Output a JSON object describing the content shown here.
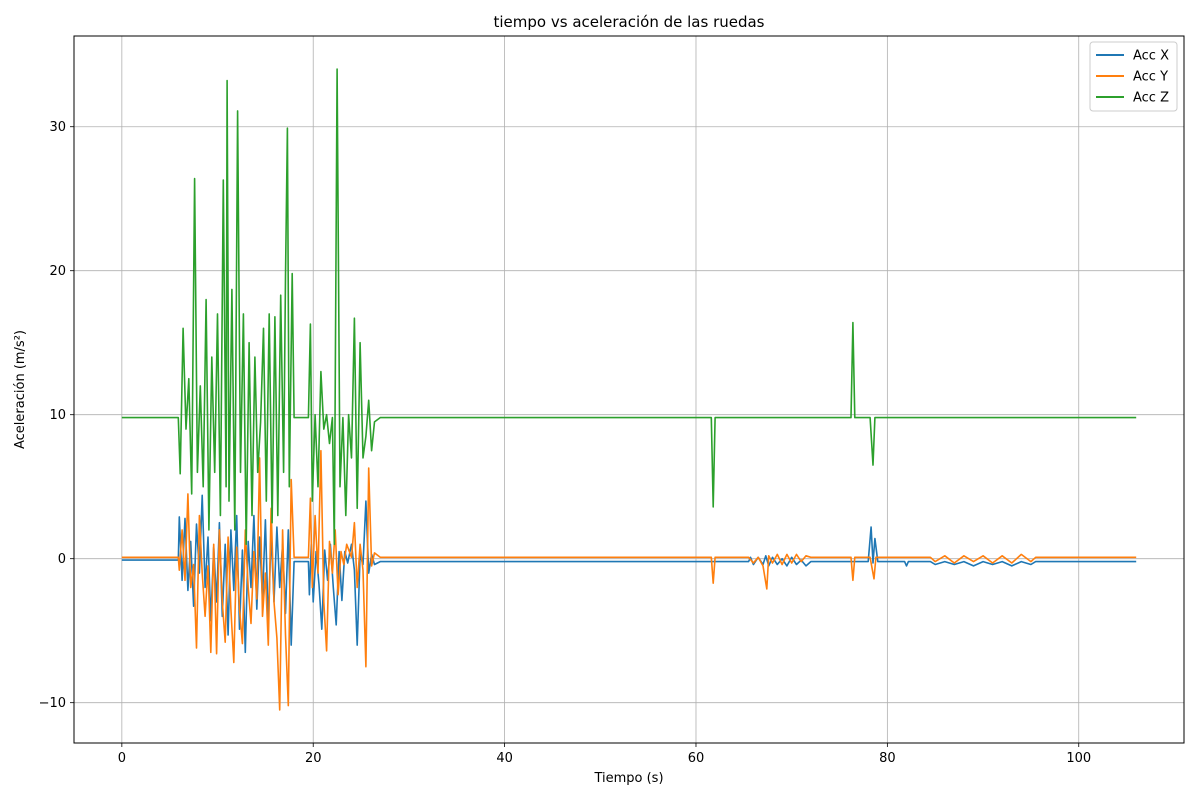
{
  "chart_data": {
    "type": "line",
    "title": "tiempo vs aceleración de las ruedas",
    "xlabel": "Tiempo (s)",
    "ylabel": "Aceleración (m/s²)",
    "xlim": [
      -5,
      111
    ],
    "ylim": [
      -12.8,
      36.3
    ],
    "x_ticks": [
      0,
      20,
      40,
      60,
      80,
      100
    ],
    "y_ticks": [
      -10,
      0,
      10,
      20,
      30
    ],
    "y_tick_labels": [
      "−10",
      "0",
      "10",
      "20",
      "30"
    ],
    "grid": true,
    "legend_position": "top-right",
    "series": [
      {
        "name": "Acc X",
        "color": "#1f77b4",
        "points": [
          [
            0,
            -0.1
          ],
          [
            5.9,
            -0.1
          ],
          [
            6.0,
            2.9
          ],
          [
            6.3,
            -1.5
          ],
          [
            6.6,
            2.8
          ],
          [
            6.9,
            -2.2
          ],
          [
            7.2,
            1.2
          ],
          [
            7.5,
            -3.3
          ],
          [
            7.8,
            2.4
          ],
          [
            8.1,
            -1.0
          ],
          [
            8.4,
            4.4
          ],
          [
            8.7,
            -2.0
          ],
          [
            9.0,
            1.5
          ],
          [
            9.3,
            -4.3
          ],
          [
            9.6,
            0.8
          ],
          [
            9.9,
            -3.0
          ],
          [
            10.2,
            2.5
          ],
          [
            10.5,
            -4.0
          ],
          [
            10.8,
            1.0
          ],
          [
            11.1,
            -5.3
          ],
          [
            11.4,
            2.0
          ],
          [
            11.7,
            -2.2
          ],
          [
            12.0,
            3.0
          ],
          [
            12.3,
            -4.9
          ],
          [
            12.6,
            0.6
          ],
          [
            12.9,
            -6.5
          ],
          [
            13.2,
            1.2
          ],
          [
            13.5,
            -2.0
          ],
          [
            13.8,
            3.0
          ],
          [
            14.1,
            -3.5
          ],
          [
            14.4,
            1.5
          ],
          [
            14.7,
            -2.8
          ],
          [
            15.0,
            2.7
          ],
          [
            15.3,
            -4.6
          ],
          [
            15.6,
            1.8
          ],
          [
            15.9,
            -3.0
          ],
          [
            16.2,
            2.2
          ],
          [
            16.5,
            -2.0
          ],
          [
            16.8,
            1.0
          ],
          [
            17.1,
            -3.8
          ],
          [
            17.4,
            2.0
          ],
          [
            17.7,
            -6.0
          ],
          [
            18.0,
            -0.2
          ],
          [
            19.5,
            -0.2
          ],
          [
            19.6,
            -2.5
          ],
          [
            19.8,
            1.0
          ],
          [
            20.0,
            -3.0
          ],
          [
            20.3,
            0.5
          ],
          [
            20.6,
            -1.8
          ],
          [
            20.9,
            -4.9
          ],
          [
            21.2,
            0.6
          ],
          [
            21.5,
            -1.5
          ],
          [
            21.8,
            1.0
          ],
          [
            22.1,
            -2.0
          ],
          [
            22.4,
            -4.6
          ],
          [
            22.7,
            0.5
          ],
          [
            23.0,
            -2.9
          ],
          [
            23.3,
            0.5
          ],
          [
            23.6,
            -0.3
          ],
          [
            24.0,
            1.0
          ],
          [
            24.3,
            -0.8
          ],
          [
            24.6,
            -6.0
          ],
          [
            24.9,
            0.3
          ],
          [
            25.2,
            -0.4
          ],
          [
            25.5,
            4.0
          ],
          [
            25.8,
            -1.0
          ],
          [
            26.1,
            0.3
          ],
          [
            26.4,
            -0.4
          ],
          [
            27.0,
            -0.2
          ],
          [
            65.5,
            -0.2
          ],
          [
            65.7,
            0.1
          ],
          [
            66.0,
            -0.4
          ],
          [
            66.5,
            0.1
          ],
          [
            67.0,
            -0.4
          ],
          [
            67.3,
            0.2
          ],
          [
            67.6,
            -0.5
          ],
          [
            68.0,
            0.1
          ],
          [
            68.5,
            -0.4
          ],
          [
            69.0,
            0.0
          ],
          [
            69.5,
            -0.5
          ],
          [
            70.0,
            0.1
          ],
          [
            70.5,
            -0.4
          ],
          [
            71.0,
            -0.1
          ],
          [
            71.5,
            -0.5
          ],
          [
            72.0,
            -0.2
          ],
          [
            78.0,
            -0.2
          ],
          [
            78.3,
            2.2
          ],
          [
            78.5,
            -0.3
          ],
          [
            78.7,
            1.4
          ],
          [
            79.0,
            -0.2
          ],
          [
            81.8,
            -0.2
          ],
          [
            82.0,
            -0.5
          ],
          [
            82.2,
            -0.2
          ],
          [
            84.5,
            -0.2
          ],
          [
            85.0,
            -0.4
          ],
          [
            86.0,
            -0.2
          ],
          [
            87.0,
            -0.4
          ],
          [
            88.0,
            -0.2
          ],
          [
            89.0,
            -0.5
          ],
          [
            90.0,
            -0.2
          ],
          [
            91.0,
            -0.4
          ],
          [
            92.0,
            -0.2
          ],
          [
            93.0,
            -0.5
          ],
          [
            94.0,
            -0.2
          ],
          [
            95.0,
            -0.4
          ],
          [
            95.5,
            -0.2
          ],
          [
            106,
            -0.2
          ]
        ]
      },
      {
        "name": "Acc Y",
        "color": "#ff7f0e",
        "points": [
          [
            0,
            0.1
          ],
          [
            5.9,
            0.1
          ],
          [
            6.0,
            -0.8
          ],
          [
            6.3,
            2.0
          ],
          [
            6.6,
            -1.5
          ],
          [
            6.9,
            4.5
          ],
          [
            7.2,
            -2.0
          ],
          [
            7.5,
            -0.4
          ],
          [
            7.8,
            -6.2
          ],
          [
            8.1,
            3.0
          ],
          [
            8.4,
            -1.0
          ],
          [
            8.7,
            -4.0
          ],
          [
            9.0,
            -0.5
          ],
          [
            9.3,
            -6.5
          ],
          [
            9.6,
            1.0
          ],
          [
            9.9,
            -6.6
          ],
          [
            10.2,
            2.0
          ],
          [
            10.5,
            -3.0
          ],
          [
            10.8,
            -5.8
          ],
          [
            11.1,
            1.5
          ],
          [
            11.4,
            -3.5
          ],
          [
            11.7,
            -7.2
          ],
          [
            12.0,
            0.8
          ],
          [
            12.3,
            -3.5
          ],
          [
            12.6,
            -5.9
          ],
          [
            12.9,
            2.0
          ],
          [
            13.2,
            -2.0
          ],
          [
            13.5,
            -4.5
          ],
          [
            13.8,
            0.5
          ],
          [
            14.1,
            -2.8
          ],
          [
            14.4,
            7.0
          ],
          [
            14.7,
            -4.0
          ],
          [
            15.0,
            -1.0
          ],
          [
            15.3,
            -6.0
          ],
          [
            15.6,
            3.5
          ],
          [
            15.9,
            -3.0
          ],
          [
            16.2,
            -5.5
          ],
          [
            16.5,
            -10.5
          ],
          [
            16.8,
            2.0
          ],
          [
            17.1,
            -5.3
          ],
          [
            17.4,
            -10.2
          ],
          [
            17.7,
            5.5
          ],
          [
            18.0,
            0.1
          ],
          [
            19.5,
            0.1
          ],
          [
            19.7,
            4.2
          ],
          [
            19.9,
            -2.0
          ],
          [
            20.2,
            3.0
          ],
          [
            20.5,
            -1.0
          ],
          [
            20.8,
            7.5
          ],
          [
            21.1,
            -3.0
          ],
          [
            21.4,
            -6.4
          ],
          [
            21.7,
            1.2
          ],
          [
            22.0,
            -1.0
          ],
          [
            22.3,
            2.0
          ],
          [
            22.6,
            -2.5
          ],
          [
            22.9,
            0.5
          ],
          [
            23.2,
            -0.4
          ],
          [
            23.5,
            1.0
          ],
          [
            24.0,
            0.1
          ],
          [
            24.3,
            2.5
          ],
          [
            24.6,
            -2.0
          ],
          [
            24.9,
            1.0
          ],
          [
            25.2,
            -0.8
          ],
          [
            25.5,
            -7.5
          ],
          [
            25.8,
            6.3
          ],
          [
            26.1,
            -0.5
          ],
          [
            26.4,
            0.4
          ],
          [
            27.0,
            0.1
          ],
          [
            61.6,
            0.1
          ],
          [
            61.8,
            -1.7
          ],
          [
            62.0,
            0.1
          ],
          [
            65.5,
            0.1
          ],
          [
            66.0,
            -0.3
          ],
          [
            66.5,
            0.1
          ],
          [
            67.0,
            -0.5
          ],
          [
            67.4,
            -2.1
          ],
          [
            67.6,
            0.2
          ],
          [
            68.0,
            -0.3
          ],
          [
            68.5,
            0.3
          ],
          [
            69.0,
            -0.4
          ],
          [
            69.5,
            0.3
          ],
          [
            70.0,
            -0.3
          ],
          [
            70.5,
            0.3
          ],
          [
            71.0,
            -0.2
          ],
          [
            71.5,
            0.2
          ],
          [
            72.0,
            0.1
          ],
          [
            76.2,
            0.1
          ],
          [
            76.4,
            -1.5
          ],
          [
            76.6,
            0.1
          ],
          [
            78.2,
            0.1
          ],
          [
            78.6,
            -1.4
          ],
          [
            78.8,
            0.1
          ],
          [
            84.5,
            0.1
          ],
          [
            85.0,
            -0.2
          ],
          [
            86.0,
            0.2
          ],
          [
            87.0,
            -0.3
          ],
          [
            88.0,
            0.2
          ],
          [
            89.0,
            -0.2
          ],
          [
            90.0,
            0.2
          ],
          [
            91.0,
            -0.3
          ],
          [
            92.0,
            0.2
          ],
          [
            93.0,
            -0.3
          ],
          [
            94.0,
            0.3
          ],
          [
            95.0,
            -0.2
          ],
          [
            95.5,
            0.1
          ],
          [
            106,
            0.1
          ]
        ]
      },
      {
        "name": "Acc Z",
        "color": "#2ca02c",
        "points": [
          [
            0,
            9.8
          ],
          [
            5.9,
            9.8
          ],
          [
            6.1,
            5.9
          ],
          [
            6.4,
            16.0
          ],
          [
            6.7,
            9.0
          ],
          [
            7.0,
            12.5
          ],
          [
            7.3,
            4.5
          ],
          [
            7.6,
            26.4
          ],
          [
            7.9,
            6.0
          ],
          [
            8.2,
            12.0
          ],
          [
            8.5,
            5.0
          ],
          [
            8.8,
            18.0
          ],
          [
            9.1,
            2.0
          ],
          [
            9.4,
            14.0
          ],
          [
            9.7,
            6.0
          ],
          [
            10.0,
            17.0
          ],
          [
            10.3,
            3.0
          ],
          [
            10.6,
            26.3
          ],
          [
            10.9,
            5.0
          ],
          [
            11.0,
            33.2
          ],
          [
            11.2,
            4.0
          ],
          [
            11.5,
            18.7
          ],
          [
            11.8,
            2.0
          ],
          [
            12.1,
            31.1
          ],
          [
            12.4,
            6.0
          ],
          [
            12.7,
            17.0
          ],
          [
            13.0,
            1.0
          ],
          [
            13.3,
            15.0
          ],
          [
            13.6,
            3.0
          ],
          [
            13.9,
            14.0
          ],
          [
            14.2,
            6.0
          ],
          [
            14.5,
            9.5
          ],
          [
            14.8,
            16.0
          ],
          [
            15.1,
            4.0
          ],
          [
            15.4,
            17.0
          ],
          [
            15.7,
            2.5
          ],
          [
            16.0,
            16.8
          ],
          [
            16.3,
            3.0
          ],
          [
            16.6,
            18.3
          ],
          [
            16.9,
            6.0
          ],
          [
            17.1,
            19.6
          ],
          [
            17.3,
            29.9
          ],
          [
            17.5,
            5.0
          ],
          [
            17.8,
            19.8
          ],
          [
            18.0,
            9.8
          ],
          [
            19.5,
            9.8
          ],
          [
            19.7,
            16.3
          ],
          [
            19.9,
            4.0
          ],
          [
            20.2,
            10.0
          ],
          [
            20.5,
            5.0
          ],
          [
            20.8,
            13.0
          ],
          [
            21.1,
            9.0
          ],
          [
            21.4,
            10.0
          ],
          [
            21.7,
            8.0
          ],
          [
            22.0,
            9.8
          ],
          [
            22.2,
            1.0
          ],
          [
            22.5,
            34.0
          ],
          [
            22.8,
            5.0
          ],
          [
            23.1,
            9.8
          ],
          [
            23.4,
            3.0
          ],
          [
            23.7,
            10.0
          ],
          [
            24.0,
            7.0
          ],
          [
            24.3,
            16.7
          ],
          [
            24.6,
            3.5
          ],
          [
            24.9,
            15.0
          ],
          [
            25.2,
            7.0
          ],
          [
            25.5,
            8.5
          ],
          [
            25.8,
            11.0
          ],
          [
            26.1,
            7.5
          ],
          [
            26.4,
            9.5
          ],
          [
            27.0,
            9.8
          ],
          [
            61.6,
            9.8
          ],
          [
            61.8,
            3.6
          ],
          [
            62.0,
            9.8
          ],
          [
            76.2,
            9.8
          ],
          [
            76.4,
            16.4
          ],
          [
            76.6,
            9.8
          ],
          [
            78.2,
            9.8
          ],
          [
            78.5,
            6.5
          ],
          [
            78.7,
            9.8
          ],
          [
            106,
            9.8
          ]
        ]
      }
    ]
  }
}
